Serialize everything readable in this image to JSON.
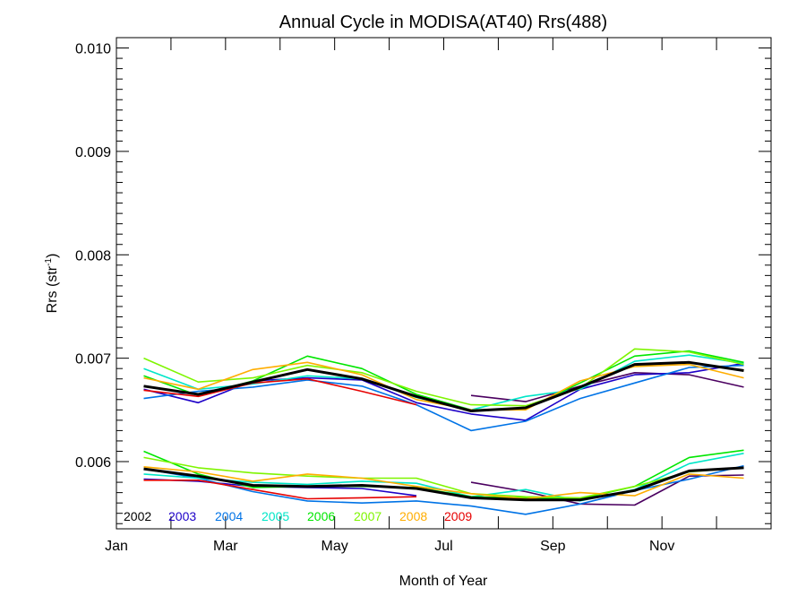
{
  "chart_data": {
    "type": "line",
    "title": "Annual Cycle in MODISA(AT40) Rrs(488)",
    "xlabel": "Month of Year",
    "ylabel_main": "Rrs (str",
    "ylabel_sup": "-1",
    "ylabel_close": ")",
    "xlim": [
      0,
      12
    ],
    "ylim": [
      0.00535,
      0.0101
    ],
    "x_ticks": [
      {
        "value": 0,
        "label": "Jan"
      },
      {
        "value": 2,
        "label": "Mar"
      },
      {
        "value": 4,
        "label": "May"
      },
      {
        "value": 6,
        "label": "Jul"
      },
      {
        "value": 8,
        "label": "Sep"
      },
      {
        "value": 10,
        "label": "Nov"
      }
    ],
    "y_ticks": [
      {
        "value": 0.006,
        "label": "0.006"
      },
      {
        "value": 0.007,
        "label": "0.007"
      },
      {
        "value": 0.008,
        "label": "0.008"
      },
      {
        "value": 0.009,
        "label": "0.009"
      },
      {
        "value": 0.01,
        "label": "0.010"
      }
    ],
    "grid": false,
    "legend_position": "bottom-left",
    "x": [
      0,
      1,
      2,
      3,
      4,
      5,
      6,
      7,
      8,
      9,
      10,
      11
    ],
    "series": [
      {
        "name": "2002",
        "color": "#4b0060",
        "groups": [
          [
            null,
            null,
            null,
            null,
            null,
            null,
            6.64,
            6.58,
            6.73,
            6.86,
            6.84,
            6.72
          ],
          [
            null,
            null,
            null,
            null,
            null,
            null,
            5.8,
            5.71,
            5.59,
            5.58,
            5.86,
            5.87
          ]
        ]
      },
      {
        "name": "2003",
        "color": "#1d00c8",
        "groups": [
          [
            6.7,
            6.57,
            6.78,
            6.81,
            6.79,
            6.57,
            6.46,
            6.4,
            6.7,
            6.84,
            6.86,
            6.95
          ],
          [
            5.83,
            5.81,
            5.76,
            5.75,
            5.74,
            5.67,
            null,
            null,
            null,
            null,
            null,
            null
          ]
        ]
      },
      {
        "name": "2004",
        "color": "#0073e6",
        "groups": [
          [
            6.61,
            6.68,
            6.72,
            6.79,
            6.73,
            6.55,
            6.3,
            6.39,
            6.61,
            6.76,
            6.91,
            6.93
          ],
          [
            5.93,
            5.84,
            5.71,
            5.62,
            5.6,
            5.62,
            5.57,
            5.49,
            5.59,
            5.72,
            5.83,
            5.96
          ]
        ]
      },
      {
        "name": "2005",
        "color": "#00e6c8",
        "groups": [
          [
            6.9,
            6.7,
            6.75,
            6.83,
            6.8,
            6.62,
            6.5,
            6.63,
            6.7,
            6.97,
            7.03,
            6.95
          ],
          [
            5.88,
            5.84,
            5.8,
            5.78,
            5.81,
            5.79,
            5.66,
            5.73,
            5.62,
            5.73,
            5.98,
            6.08
          ]
        ]
      },
      {
        "name": "2006",
        "color": "#00e600",
        "groups": [
          [
            6.83,
            6.64,
            6.78,
            7.02,
            6.9,
            6.65,
            6.5,
            6.51,
            6.76,
            7.02,
            7.07,
            6.96
          ],
          [
            6.1,
            5.88,
            5.75,
            5.76,
            5.76,
            5.75,
            5.66,
            5.65,
            5.64,
            5.76,
            6.04,
            6.11
          ]
        ]
      },
      {
        "name": "2007",
        "color": "#7ef500",
        "groups": [
          [
            7.0,
            6.77,
            6.81,
            6.93,
            6.86,
            6.68,
            6.55,
            6.54,
            6.71,
            7.09,
            7.06,
            6.94
          ],
          [
            6.04,
            5.94,
            5.89,
            5.86,
            5.84,
            5.84,
            5.69,
            5.66,
            5.65,
            5.76,
            5.9,
            5.94
          ]
        ]
      },
      {
        "name": "2008",
        "color": "#ffad00",
        "groups": [
          [
            6.81,
            6.7,
            6.89,
            6.96,
            6.84,
            6.6,
            6.5,
            6.5,
            6.78,
            6.92,
            6.94,
            6.81
          ],
          [
            5.95,
            5.9,
            5.81,
            5.88,
            5.84,
            5.76,
            5.69,
            5.64,
            5.7,
            5.67,
            5.88,
            5.84
          ]
        ]
      },
      {
        "name": "2009",
        "color": "#e60000",
        "groups": [
          [
            6.69,
            6.63,
            6.76,
            6.8,
            6.68,
            6.55,
            null,
            null,
            null,
            null,
            null,
            null
          ],
          [
            5.82,
            5.82,
            5.73,
            5.64,
            5.65,
            5.66,
            null,
            null,
            null,
            null,
            null,
            null
          ]
        ]
      },
      {
        "name": "",
        "color": "#000000",
        "thick": true,
        "groups": [
          [
            6.73,
            6.65,
            6.77,
            6.89,
            6.8,
            6.63,
            6.49,
            6.52,
            6.72,
            6.94,
            6.96,
            6.88
          ],
          [
            5.93,
            5.86,
            5.77,
            5.76,
            5.77,
            5.74,
            5.65,
            5.63,
            5.63,
            5.72,
            5.91,
            5.94
          ]
        ]
      }
    ],
    "y_value_unit_note": "group values in units of 0.001 sr^-1",
    "legend_entries": [
      {
        "label": "2002",
        "color": "#000000"
      },
      {
        "label": "2003",
        "color": "#1d00c8"
      },
      {
        "label": "2004",
        "color": "#0073e6"
      },
      {
        "label": "2005",
        "color": "#00e6c8"
      },
      {
        "label": "2006",
        "color": "#00e600"
      },
      {
        "label": "2007",
        "color": "#7ef500"
      },
      {
        "label": "2008",
        "color": "#ffad00"
      },
      {
        "label": "2009",
        "color": "#e60000"
      }
    ]
  }
}
